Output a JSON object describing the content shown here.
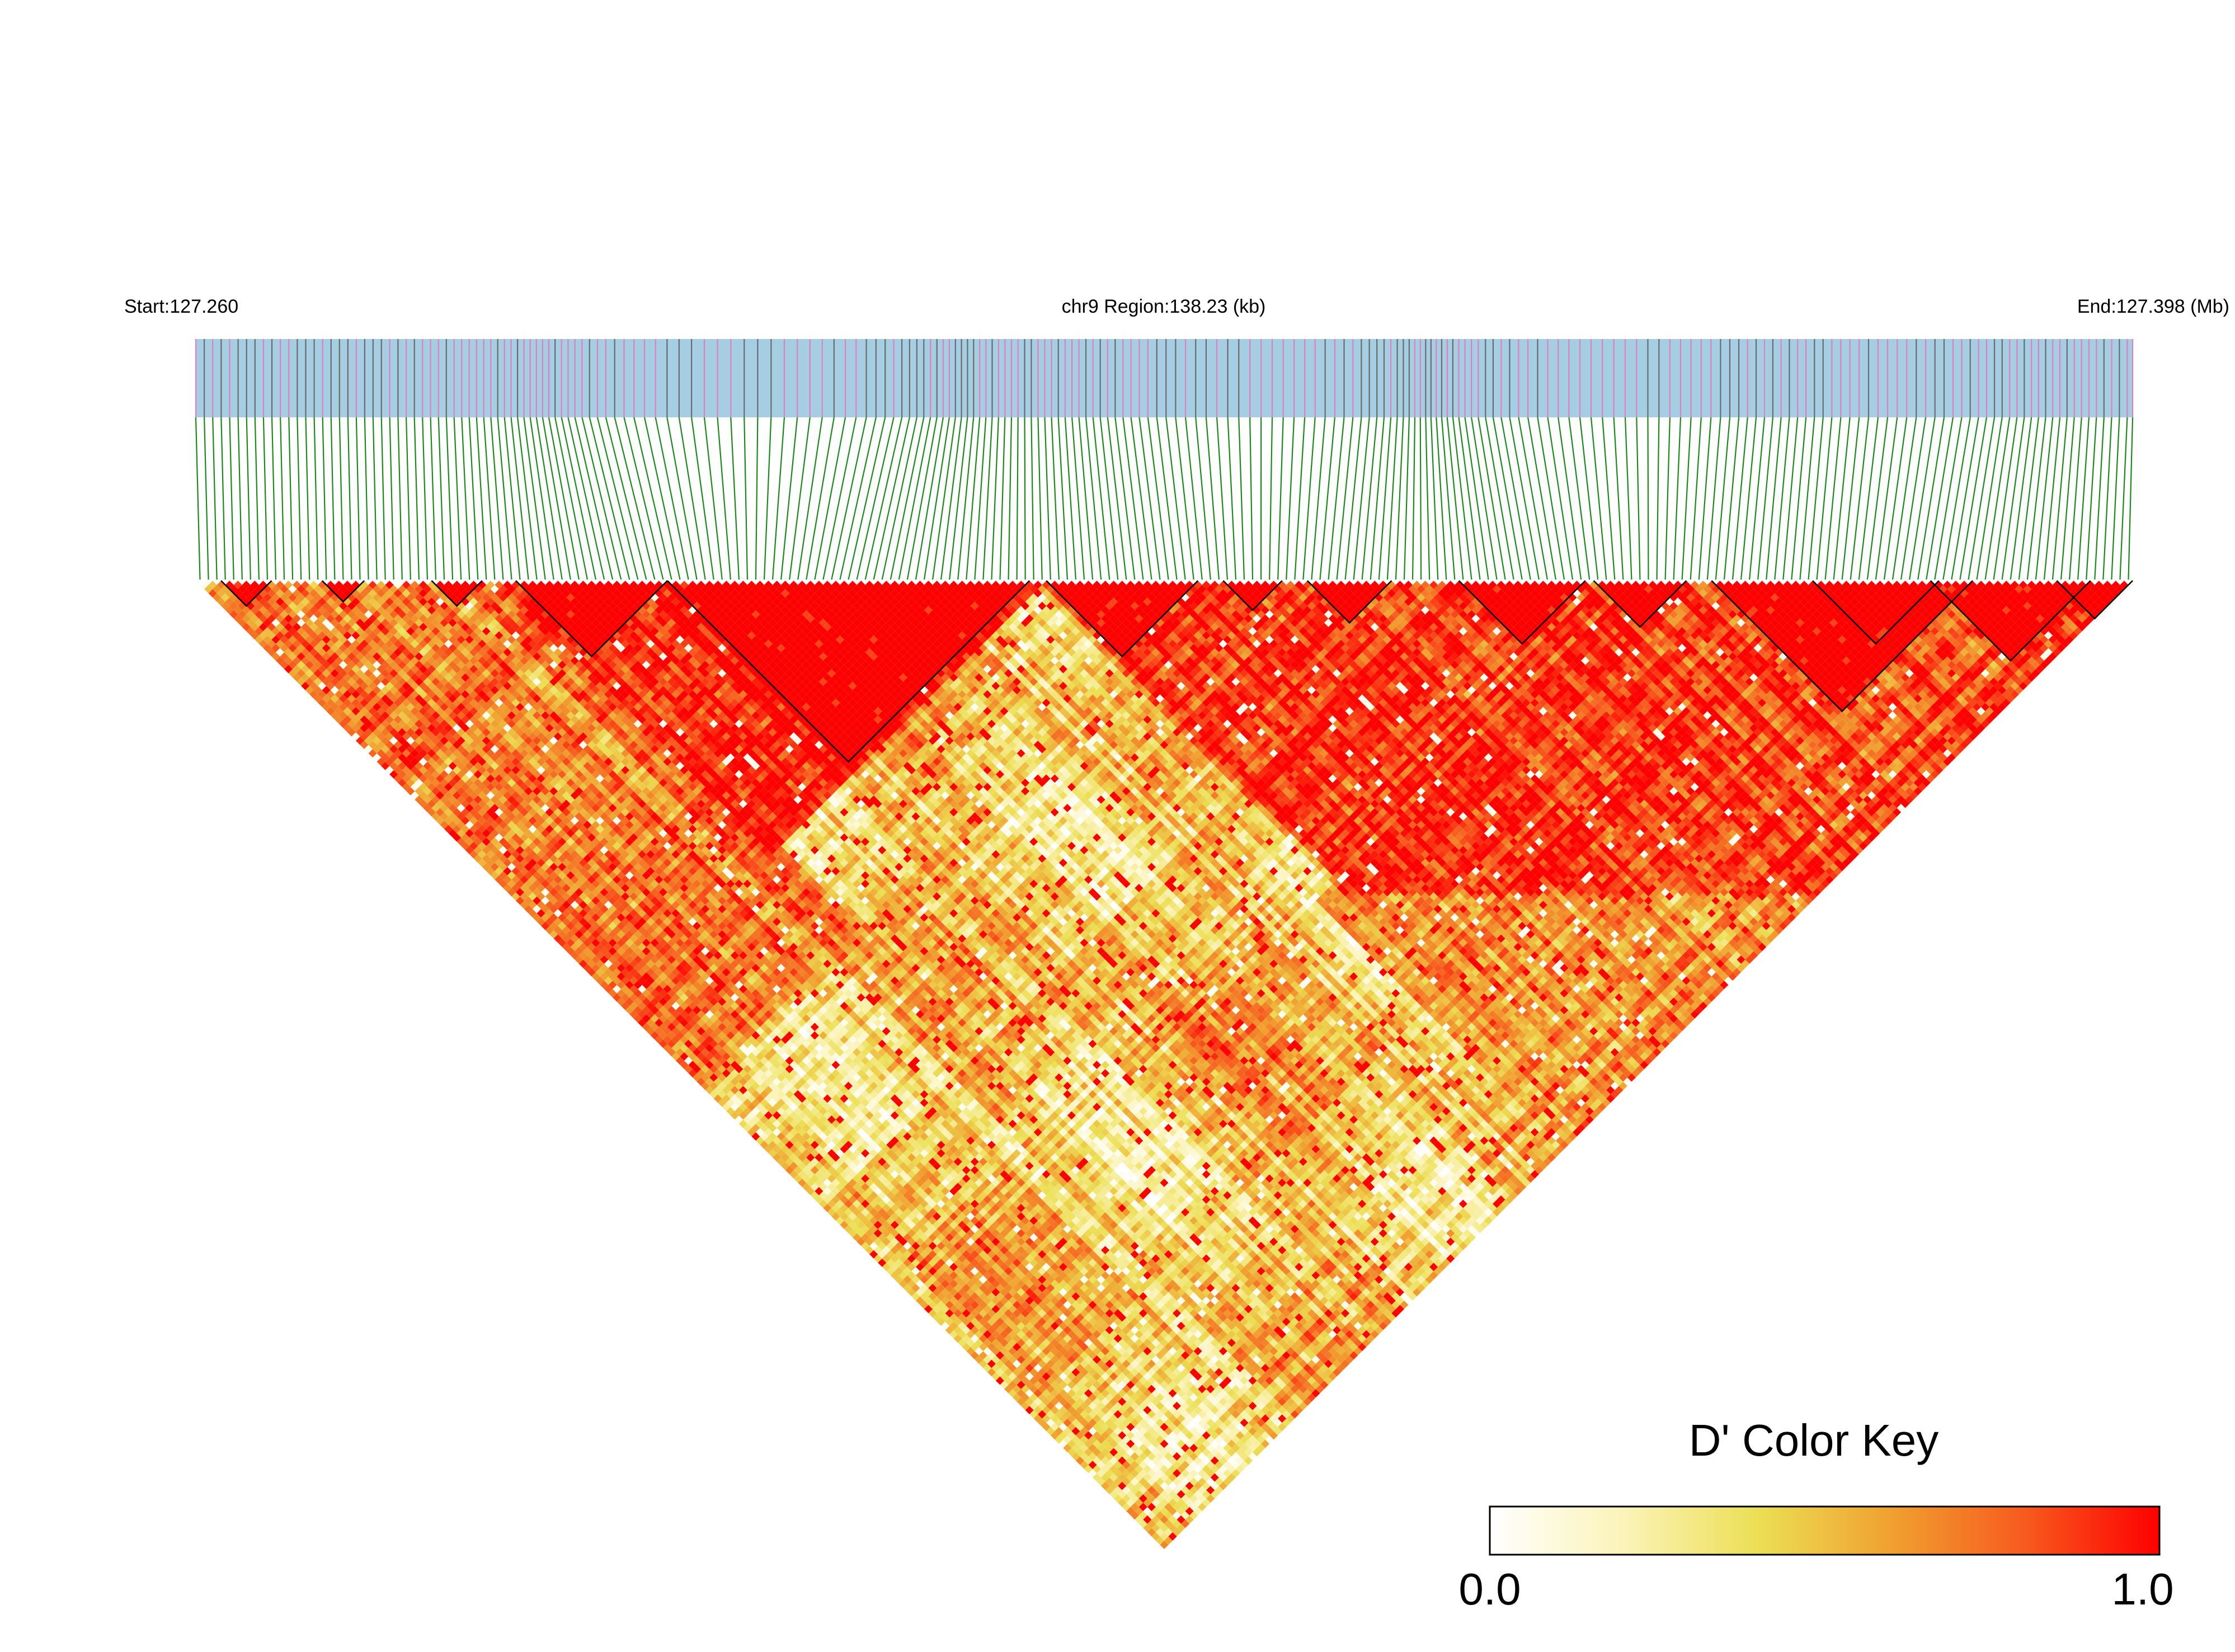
{
  "chart_data": {
    "type": "heatmap",
    "subtype": "linkage-disequilibrium-triangle",
    "title": "",
    "start_label": "Start:127.260",
    "region_label": "chr9 Region:138.23 (kb)",
    "end_label": "End:127.398 (Mb)",
    "chromosome": "chr9",
    "region_start_mb": 127.26,
    "region_end_mb": 127.398,
    "region_length_kb": 138.23,
    "metric": "D'",
    "snp_count": 230,
    "snp_density_pattern": "clustered",
    "ld_pattern_description_levels": {
      "strong_ld": 1.0,
      "moderate_ld": 0.7,
      "weak_ld": 0.45
    },
    "color_scale": {
      "min": 0.0,
      "max": 1.0,
      "stops": [
        "#ffffff",
        "#fbf3b8",
        "#ecdf55",
        "#f0a030",
        "#f75a1e",
        "#fe0000"
      ]
    },
    "haplotype_blocks_snp_ranges": [
      [
        3,
        8
      ],
      [
        15,
        19
      ],
      [
        28,
        33
      ],
      [
        38,
        55
      ],
      [
        56,
        98
      ],
      [
        101,
        118
      ],
      [
        122,
        128
      ],
      [
        132,
        141
      ],
      [
        150,
        164
      ],
      [
        166,
        176
      ],
      [
        180,
        210
      ],
      [
        192,
        206
      ],
      [
        206,
        224
      ],
      [
        221,
        229
      ]
    ],
    "legend": {
      "title": "D' Color Key",
      "min_label": "0.0",
      "max_label": "1.0",
      "placement": "bottom-right"
    },
    "track_colors": {
      "snp_bar_background": "#a6cee3",
      "snp_tick_gene": "#e07fc0",
      "snp_tick_other": "#6b6b6b",
      "connector_lines": "#1a8a1a",
      "block_outline": "#000000"
    }
  }
}
